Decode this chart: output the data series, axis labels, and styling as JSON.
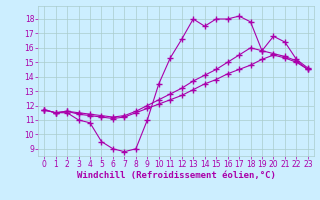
{
  "background_color": "#cceeff",
  "line_color": "#aa00aa",
  "marker": "+",
  "markersize": 4,
  "linewidth": 0.8,
  "grid_color": "#aacccc",
  "xlabel": "Windchill (Refroidissement éolien,°C)",
  "xlabel_fontsize": 6.5,
  "xlabel_color": "#aa00aa",
  "tick_label_color": "#aa00aa",
  "tick_fontsize": 5.5,
  "xlim": [
    -0.5,
    23.5
  ],
  "ylim": [
    8.5,
    18.9
  ],
  "yticks": [
    9,
    10,
    11,
    12,
    13,
    14,
    15,
    16,
    17,
    18
  ],
  "xticks": [
    0,
    1,
    2,
    3,
    4,
    5,
    6,
    7,
    8,
    9,
    10,
    11,
    12,
    13,
    14,
    15,
    16,
    17,
    18,
    19,
    20,
    21,
    22,
    23
  ],
  "curve1_x": [
    0,
    1,
    2,
    3,
    4,
    5,
    6,
    7,
    8,
    9,
    10,
    11,
    12,
    13,
    14,
    15,
    16,
    17,
    18,
    19,
    20,
    21,
    22,
    23
  ],
  "curve1_y": [
    11.7,
    11.5,
    11.5,
    11.0,
    10.8,
    9.5,
    9.0,
    8.8,
    9.0,
    11.0,
    13.5,
    15.3,
    16.6,
    18.0,
    17.5,
    18.0,
    18.0,
    18.2,
    17.8,
    15.8,
    16.8,
    16.4,
    15.2,
    14.6
  ],
  "curve2_x": [
    0,
    1,
    2,
    3,
    4,
    5,
    6,
    7,
    8,
    9,
    10,
    11,
    12,
    13,
    14,
    15,
    16,
    17,
    18,
    19,
    20,
    21,
    22,
    23
  ],
  "curve2_y": [
    11.7,
    11.5,
    11.6,
    11.4,
    11.3,
    11.2,
    11.1,
    11.2,
    11.5,
    11.8,
    12.1,
    12.4,
    12.7,
    13.1,
    13.5,
    13.8,
    14.2,
    14.5,
    14.8,
    15.2,
    15.5,
    15.3,
    15.0,
    14.5
  ],
  "curve3_x": [
    0,
    1,
    2,
    3,
    4,
    5,
    6,
    7,
    8,
    9,
    10,
    11,
    12,
    13,
    14,
    15,
    16,
    17,
    18,
    19,
    20,
    21,
    22,
    23
  ],
  "curve3_y": [
    11.7,
    11.5,
    11.6,
    11.5,
    11.4,
    11.3,
    11.2,
    11.3,
    11.6,
    12.0,
    12.4,
    12.8,
    13.2,
    13.7,
    14.1,
    14.5,
    15.0,
    15.5,
    16.0,
    15.8,
    15.6,
    15.4,
    15.1,
    14.5
  ]
}
